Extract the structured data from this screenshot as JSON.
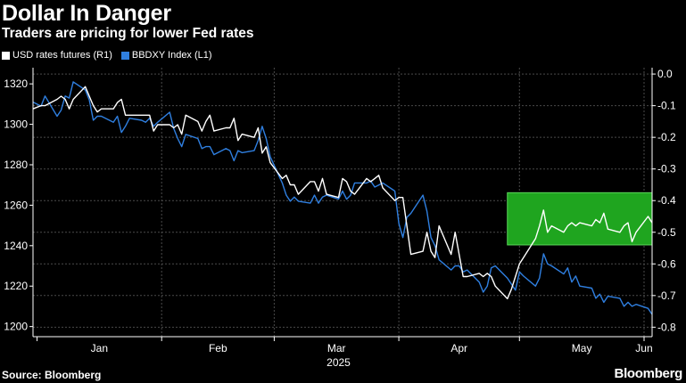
{
  "header": {
    "title": "Dollar In Danger",
    "subtitle": "Traders are pricing for lower Fed rates"
  },
  "footer": {
    "source": "Source: Bloomberg",
    "brand": "Bloomberg"
  },
  "colors": {
    "background": "#000000",
    "usd_line": "#ffffff",
    "bbdxy_line": "#2f7fe0",
    "highlight_fill": "#1fa51f",
    "highlight_stroke": "#5ad65a",
    "grid": "#4a4a4a"
  },
  "chart_data": {
    "type": "line",
    "x_axis": {
      "ticks": [
        "Jan",
        "Feb",
        "Mar",
        "Apr",
        "May",
        "Jun"
      ],
      "year_label": "2025",
      "range": [
        "2024-12-31",
        "2025-06-03"
      ]
    },
    "y_left": {
      "range": [
        1195,
        1328
      ],
      "ticks": [
        1200,
        1220,
        1240,
        1260,
        1280,
        1300,
        1320
      ]
    },
    "y_right": {
      "range": [
        -0.83,
        0.02
      ],
      "ticks": [
        "0.0",
        "-0.1",
        "-0.2",
        "-0.3",
        "-0.4",
        "-0.5",
        "-0.6",
        "-0.7",
        "-0.8"
      ]
    },
    "grid": true,
    "legend_placement": "top-left",
    "highlight": {
      "x_from": "2025-04-28",
      "x_to": "2025-06-03",
      "y_right_from": -0.375,
      "y_right_to": -0.54
    },
    "series": [
      {
        "name": "USD rates futures  (R1)",
        "axis": "right",
        "x": [
          "2024-12-31",
          "2025-01-02",
          "2025-01-03",
          "2025-01-06",
          "2025-01-07",
          "2025-01-08",
          "2025-01-09",
          "2025-01-10",
          "2025-01-13",
          "2025-01-14",
          "2025-01-15",
          "2025-01-16",
          "2025-01-17",
          "2025-01-20",
          "2025-01-21",
          "2025-01-22",
          "2025-01-23",
          "2025-01-24",
          "2025-01-27",
          "2025-01-28",
          "2025-01-29",
          "2025-01-30",
          "2025-01-31",
          "2025-02-03",
          "2025-02-04",
          "2025-02-05",
          "2025-02-06",
          "2025-02-07",
          "2025-02-10",
          "2025-02-11",
          "2025-02-12",
          "2025-02-13",
          "2025-02-14",
          "2025-02-17",
          "2025-02-18",
          "2025-02-19",
          "2025-02-20",
          "2025-02-21",
          "2025-02-24",
          "2025-02-25",
          "2025-02-26",
          "2025-02-27",
          "2025-02-28",
          "2025-03-03",
          "2025-03-04",
          "2025-03-05",
          "2025-03-06",
          "2025-03-07",
          "2025-03-10",
          "2025-03-11",
          "2025-03-12",
          "2025-03-13",
          "2025-03-14",
          "2025-03-17",
          "2025-03-18",
          "2025-03-19",
          "2025-03-20",
          "2025-03-21",
          "2025-03-24",
          "2025-03-25",
          "2025-03-26",
          "2025-03-27",
          "2025-03-28",
          "2025-03-31",
          "2025-04-01",
          "2025-04-02",
          "2025-04-03",
          "2025-04-04",
          "2025-04-07",
          "2025-04-08",
          "2025-04-09",
          "2025-04-10",
          "2025-04-11",
          "2025-04-14",
          "2025-04-15",
          "2025-04-16",
          "2025-04-17",
          "2025-04-18",
          "2025-04-21",
          "2025-04-22",
          "2025-04-23",
          "2025-04-24",
          "2025-04-25",
          "2025-04-28",
          "2025-04-29",
          "2025-04-30",
          "2025-05-01",
          "2025-05-02",
          "2025-05-05",
          "2025-05-06",
          "2025-05-07",
          "2025-05-08",
          "2025-05-09",
          "2025-05-12",
          "2025-05-13",
          "2025-05-14",
          "2025-05-15",
          "2025-05-16",
          "2025-05-19",
          "2025-05-20",
          "2025-05-21",
          "2025-05-22",
          "2025-05-23",
          "2025-05-26",
          "2025-05-27",
          "2025-05-28",
          "2025-05-29",
          "2025-05-30",
          "2025-06-02",
          "2025-06-03"
        ],
        "values": [
          -0.11,
          -0.1,
          -0.1,
          -0.08,
          -0.07,
          -0.08,
          -0.11,
          -0.08,
          -0.04,
          -0.07,
          -0.1,
          -0.12,
          -0.11,
          -0.11,
          -0.09,
          -0.08,
          -0.13,
          -0.13,
          -0.13,
          -0.13,
          -0.13,
          -0.18,
          -0.16,
          -0.16,
          -0.17,
          -0.16,
          -0.19,
          -0.13,
          -0.15,
          -0.18,
          -0.15,
          -0.13,
          -0.18,
          -0.17,
          -0.17,
          -0.14,
          -0.21,
          -0.19,
          -0.2,
          -0.17,
          -0.25,
          -0.23,
          -0.28,
          -0.33,
          -0.32,
          -0.35,
          -0.35,
          -0.38,
          -0.34,
          -0.34,
          -0.37,
          -0.33,
          -0.38,
          -0.39,
          -0.33,
          -0.34,
          -0.37,
          -0.38,
          -0.33,
          -0.34,
          -0.33,
          -0.32,
          -0.36,
          -0.4,
          -0.39,
          -0.39,
          -0.48,
          -0.57,
          -0.56,
          -0.5,
          -0.56,
          -0.58,
          -0.48,
          -0.57,
          -0.5,
          -0.57,
          -0.64,
          -0.64,
          -0.63,
          -0.64,
          -0.63,
          -0.64,
          -0.67,
          -0.71,
          -0.68,
          -0.64,
          -0.6,
          -0.58,
          -0.52,
          -0.48,
          -0.43,
          -0.5,
          -0.48,
          -0.5,
          -0.48,
          -0.47,
          -0.48,
          -0.47,
          -0.48,
          -0.46,
          -0.47,
          -0.44,
          -0.49,
          -0.5,
          -0.48,
          -0.47,
          -0.53,
          -0.5,
          -0.45,
          -0.47
        ]
      },
      {
        "name": "BBDXY Index  (L1)",
        "axis": "left",
        "x": [
          "2024-12-31",
          "2025-01-02",
          "2025-01-03",
          "2025-01-06",
          "2025-01-07",
          "2025-01-08",
          "2025-01-09",
          "2025-01-10",
          "2025-01-13",
          "2025-01-14",
          "2025-01-15",
          "2025-01-16",
          "2025-01-17",
          "2025-01-20",
          "2025-01-21",
          "2025-01-22",
          "2025-01-23",
          "2025-01-24",
          "2025-01-27",
          "2025-01-28",
          "2025-01-29",
          "2025-01-30",
          "2025-01-31",
          "2025-02-03",
          "2025-02-04",
          "2025-02-05",
          "2025-02-06",
          "2025-02-07",
          "2025-02-10",
          "2025-02-11",
          "2025-02-12",
          "2025-02-13",
          "2025-02-14",
          "2025-02-17",
          "2025-02-18",
          "2025-02-19",
          "2025-02-20",
          "2025-02-21",
          "2025-02-24",
          "2025-02-25",
          "2025-02-26",
          "2025-02-27",
          "2025-02-28",
          "2025-03-03",
          "2025-03-04",
          "2025-03-05",
          "2025-03-06",
          "2025-03-07",
          "2025-03-10",
          "2025-03-11",
          "2025-03-12",
          "2025-03-13",
          "2025-03-14",
          "2025-03-17",
          "2025-03-18",
          "2025-03-19",
          "2025-03-20",
          "2025-03-21",
          "2025-03-24",
          "2025-03-25",
          "2025-03-26",
          "2025-03-27",
          "2025-03-28",
          "2025-03-31",
          "2025-04-01",
          "2025-04-02",
          "2025-04-03",
          "2025-04-04",
          "2025-04-07",
          "2025-04-08",
          "2025-04-09",
          "2025-04-10",
          "2025-04-11",
          "2025-04-14",
          "2025-04-15",
          "2025-04-16",
          "2025-04-17",
          "2025-04-18",
          "2025-04-21",
          "2025-04-22",
          "2025-04-23",
          "2025-04-24",
          "2025-04-25",
          "2025-04-28",
          "2025-04-29",
          "2025-04-30",
          "2025-05-01",
          "2025-05-02",
          "2025-05-05",
          "2025-05-06",
          "2025-05-07",
          "2025-05-08",
          "2025-05-09",
          "2025-05-12",
          "2025-05-13",
          "2025-05-14",
          "2025-05-15",
          "2025-05-16",
          "2025-05-19",
          "2025-05-20",
          "2025-05-21",
          "2025-05-22",
          "2025-05-23",
          "2025-05-26",
          "2025-05-27",
          "2025-05-28",
          "2025-05-29",
          "2025-05-30",
          "2025-06-02",
          "2025-06-03"
        ],
        "values": [
          1311,
          1309,
          1314,
          1304,
          1307,
          1314,
          1313,
          1321,
          1317,
          1312,
          1302,
          1304,
          1304,
          1301,
          1304,
          1296,
          1299,
          1303,
          1302,
          1301,
          1303,
          1299,
          1301,
          1306,
          1298,
          1293,
          1289,
          1295,
          1293,
          1288,
          1289,
          1289,
          1285,
          1288,
          1287,
          1282,
          1287,
          1286,
          1287,
          1292,
          1299,
          1293,
          1284,
          1271,
          1265,
          1262,
          1264,
          1262,
          1261,
          1265,
          1261,
          1264,
          1265,
          1263,
          1267,
          1263,
          1265,
          1271,
          1271,
          1272,
          1269,
          1270,
          1271,
          1267,
          1251,
          1244,
          1254,
          1256,
          1265,
          1257,
          1244,
          1240,
          1233,
          1228,
          1230,
          1230,
          1227,
          1228,
          1222,
          1217,
          1220,
          1229,
          1230,
          1224,
          1221,
          1218,
          1227,
          1225,
          1220,
          1224,
          1236,
          1231,
          1230,
          1226,
          1229,
          1222,
          1225,
          1220,
          1219,
          1214,
          1216,
          1212,
          1215,
          1214,
          1210,
          1212,
          1210,
          1211,
          1209,
          1206
        ]
      }
    ]
  }
}
